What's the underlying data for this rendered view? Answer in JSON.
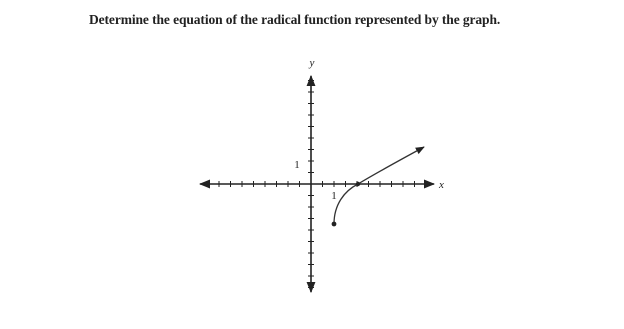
{
  "question": "Determine the equation of the radical function represented by the graph.",
  "graph": {
    "x_label": "x",
    "y_label": "y",
    "x_tick_label": "1",
    "y_tick_label": "1"
  }
}
